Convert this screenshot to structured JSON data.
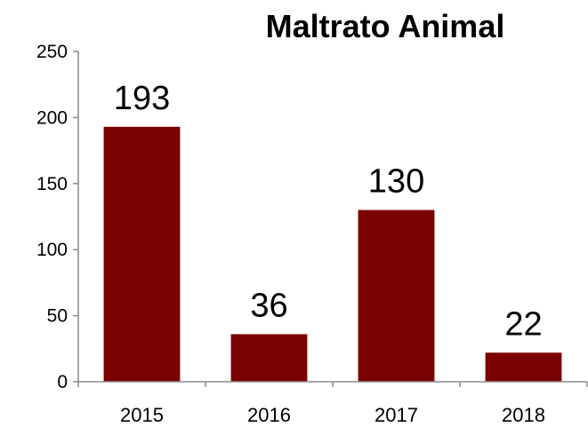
{
  "chart_data": {
    "type": "bar",
    "title": "Maltrato Animal",
    "categories": [
      "2015",
      "2016",
      "2017",
      "2018"
    ],
    "values": [
      193,
      36,
      130,
      22
    ],
    "data_labels": [
      "193",
      "36",
      "130",
      "22"
    ],
    "ylim": [
      0,
      250
    ],
    "yticks": [
      "0",
      "50",
      "100",
      "150",
      "200",
      "250"
    ],
    "xlabel": "",
    "ylabel": "",
    "grid": false,
    "legend": "none",
    "bar_color": "#7b0000"
  }
}
